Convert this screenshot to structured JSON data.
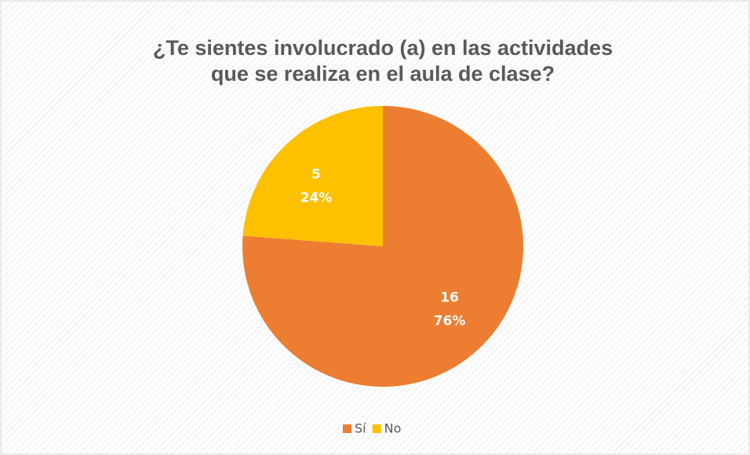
{
  "chart_data": {
    "type": "pie",
    "title": [
      "¿Te sientes involucrado (a) en las actividades",
      "que se realiza en el aula de clase?"
    ],
    "categories": [
      "Sí",
      "No"
    ],
    "values": [
      16,
      5
    ],
    "percent_labels": [
      "76%",
      "24%"
    ],
    "colors": [
      "#ED7D31",
      "#FFC000"
    ],
    "legend": "bottom"
  }
}
